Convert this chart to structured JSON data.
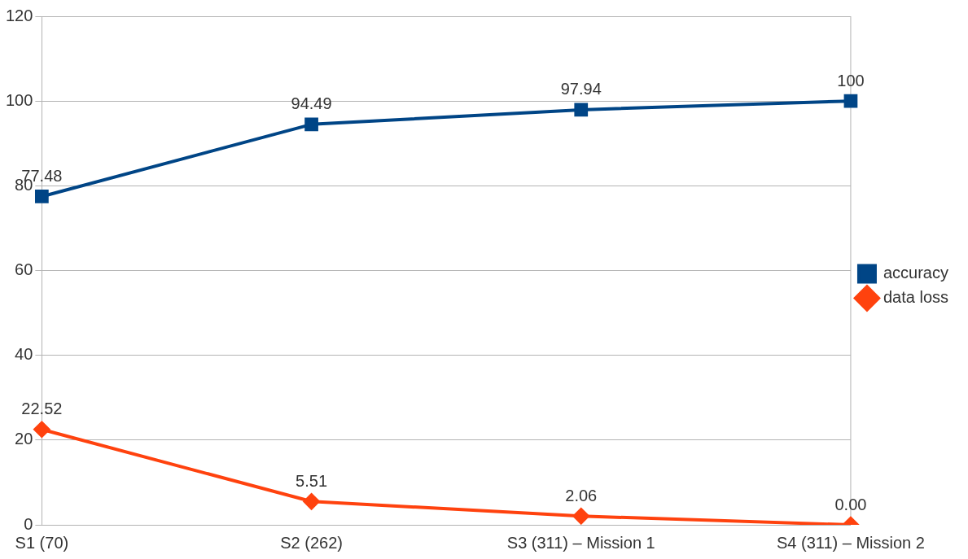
{
  "chart_data": {
    "type": "line",
    "categories": [
      "S1 (70)",
      "S2 (262)",
      "S3 (311) – Mission 1",
      "S4 (311) – Mission 2"
    ],
    "series": [
      {
        "name": "accuracy",
        "color": "#004586",
        "marker": "square",
        "values": [
          77.48,
          94.49,
          97.94,
          100
        ],
        "value_labels": [
          "77.48",
          "94.49",
          "97.94",
          "100"
        ]
      },
      {
        "name": "data loss",
        "color": "#ff420e",
        "marker": "diamond",
        "values": [
          22.52,
          5.51,
          2.06,
          0
        ],
        "value_labels": [
          "22.52",
          "5.51",
          "2.06",
          "0.00"
        ]
      }
    ],
    "ylim": [
      0,
      120
    ],
    "yticks": [
      0,
      20,
      40,
      60,
      80,
      100,
      120
    ],
    "grid": "y",
    "legend": "right",
    "line_style": "solid"
  }
}
